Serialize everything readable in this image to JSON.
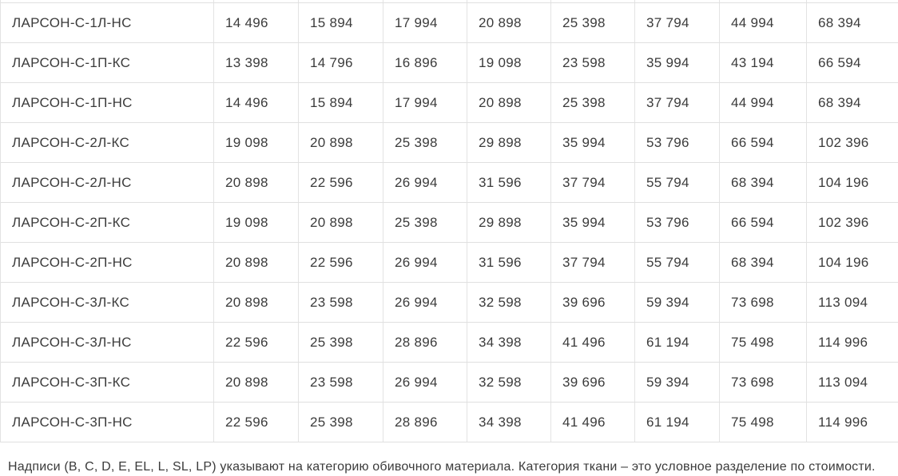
{
  "colors": {
    "background": "#ffffff",
    "border": "#e3e3e3",
    "row_line": "#e0e0e0",
    "text": "#3b3b3b"
  },
  "table": {
    "rows": [
      {
        "name": "ЛАРСОН-С-1Л-НС",
        "values": [
          "14 496",
          "15 894",
          "17 994",
          "20 898",
          "25 398",
          "37 794",
          "44 994",
          "68 394"
        ]
      },
      {
        "name": "ЛАРСОН-С-1П-КС",
        "values": [
          "13 398",
          "14 796",
          "16 896",
          "19 098",
          "23 598",
          "35 994",
          "43 194",
          "66 594"
        ]
      },
      {
        "name": "ЛАРСОН-С-1П-НС",
        "values": [
          "14 496",
          "15 894",
          "17 994",
          "20 898",
          "25 398",
          "37 794",
          "44 994",
          "68 394"
        ]
      },
      {
        "name": "ЛАРСОН-С-2Л-КС",
        "values": [
          "19 098",
          "20 898",
          "25 398",
          "29 898",
          "35 994",
          "53 796",
          "66 594",
          "102 396"
        ]
      },
      {
        "name": "ЛАРСОН-С-2Л-НС",
        "values": [
          "20 898",
          "22 596",
          "26 994",
          "31 596",
          "37 794",
          "55 794",
          "68 394",
          "104 196"
        ]
      },
      {
        "name": "ЛАРСОН-С-2П-КС",
        "values": [
          "19 098",
          "20 898",
          "25 398",
          "29 898",
          "35 994",
          "53 796",
          "66 594",
          "102 396"
        ]
      },
      {
        "name": "ЛАРСОН-С-2П-НС",
        "values": [
          "20 898",
          "22 596",
          "26 994",
          "31 596",
          "37 794",
          "55 794",
          "68 394",
          "104 196"
        ]
      },
      {
        "name": "ЛАРСОН-С-3Л-КС",
        "values": [
          "20 898",
          "23 598",
          "26 994",
          "32 598",
          "39 696",
          "59 394",
          "73 698",
          "113 094"
        ]
      },
      {
        "name": "ЛАРСОН-С-3Л-НС",
        "values": [
          "22 596",
          "25 398",
          "28 896",
          "34 398",
          "41 496",
          "61 194",
          "75 498",
          "114 996"
        ]
      },
      {
        "name": "ЛАРСОН-С-3П-КС",
        "values": [
          "20 898",
          "23 598",
          "26 994",
          "32 598",
          "39 696",
          "59 394",
          "73 698",
          "113 094"
        ]
      },
      {
        "name": "ЛАРСОН-С-3П-НС",
        "values": [
          "22 596",
          "25 398",
          "28 896",
          "34 398",
          "41 496",
          "61 194",
          "75 498",
          "114 996"
        ]
      }
    ]
  },
  "note": "Надписи (B, C, D, E, EL, L, SL, LP) указывают на категорию обивочного материала. Категория ткани – это условное разделение по стоимости."
}
